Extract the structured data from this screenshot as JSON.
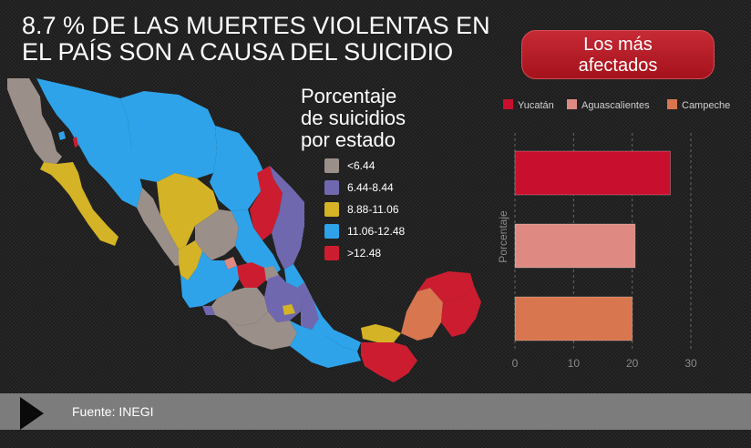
{
  "headline": {
    "line1": "8.7 % DE LAS MUERTES VIOLENTAS EN",
    "line2": "EL PAÍS SON A CAUSA DEL SUICIDIO"
  },
  "badge": {
    "line1": "Los más",
    "line2": "afectados"
  },
  "map_legend": {
    "title_line1": "Porcentaje",
    "title_line2": "de suicidios",
    "title_line3": "por estado",
    "items": [
      {
        "label": "<6.44",
        "color": "#9b8f8a"
      },
      {
        "label": "6.44-8.44",
        "color": "#7068ae"
      },
      {
        "label": "8.88-11.06",
        "color": "#d4b326"
      },
      {
        "label": "11.06-12.48",
        "color": "#2ea3e9"
      },
      {
        "label": ">12.48",
        "color": "#cc1d30"
      }
    ]
  },
  "chart_data": {
    "type": "bar",
    "orientation": "horizontal",
    "categories": [
      "Yucatán",
      "Aguascalientes",
      "Campeche"
    ],
    "series": [
      {
        "name": "Yucatán",
        "value": 26.5,
        "color": "#c8102e"
      },
      {
        "name": "Aguascalientes",
        "value": 20.5,
        "color": "#de8a82"
      },
      {
        "name": "Campeche",
        "value": 20,
        "color": "#d7764f"
      }
    ],
    "ylabel": "Porcentaje",
    "xlim": [
      0,
      30
    ],
    "xticks": [
      "0",
      "10",
      "20",
      "30"
    ],
    "grid": "vertical dashed",
    "legend": "top"
  },
  "footer": {
    "source": "Fuente: INEGI"
  }
}
